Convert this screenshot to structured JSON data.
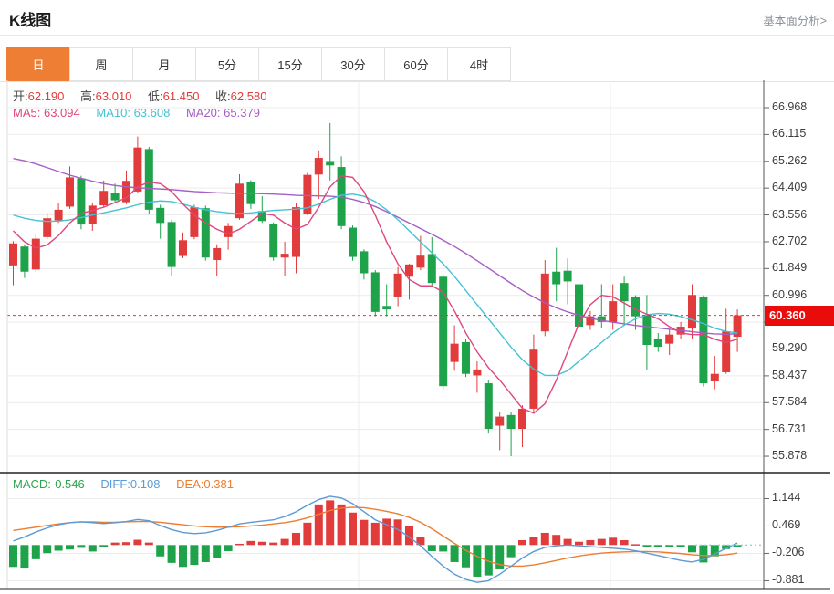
{
  "header": {
    "title": "K线图",
    "link": "基本面分析>"
  },
  "tabs": {
    "items": [
      "日",
      "周",
      "月",
      "5分",
      "15分",
      "30分",
      "60分",
      "4时"
    ],
    "active": 0
  },
  "ohlc": {
    "o_label": "开:",
    "o": "62.190",
    "h_label": "高:",
    "h": "63.010",
    "l_label": "低:",
    "l": "61.450",
    "c_label": "收:",
    "c": "62.580"
  },
  "ma_row": {
    "ma5_label": "MA5:",
    "ma5": "63.094",
    "ma10_label": "MA10:",
    "ma10": "63.608",
    "ma20_label": "MA20:",
    "ma20": "65.379"
  },
  "macd_row": {
    "macd_label": "MACD:",
    "macd": "-0.546",
    "diff_label": "DIFF:",
    "diff": "0.108",
    "dea_label": "DEA:",
    "dea": "0.381"
  },
  "price_axis": {
    "ticks": [
      "66.968",
      "66.115",
      "65.262",
      "64.409",
      "63.556",
      "62.702",
      "61.849",
      "60.996",
      "60.143",
      "59.290",
      "58.437",
      "57.584",
      "56.731",
      "55.878"
    ],
    "badge": "60.360"
  },
  "macd_axis": {
    "ticks": [
      "1.144",
      "0.469",
      "-0.206",
      "-0.881"
    ]
  },
  "colors": {
    "up": "#e23b3b",
    "down": "#1ea34b",
    "ma5": "#e0467e",
    "ma10": "#45c2d4",
    "ma20": "#a55ec3",
    "diff": "#5b9bd5",
    "dea": "#ed7d31",
    "macdtxt": "#2da44e",
    "badge": "#ea0b0b",
    "tabact": "#ee7e33",
    "grid": "#ececec",
    "axis_line": "#555555",
    "panel_border": "#222222",
    "dashed_line": "#f23030",
    "macd_dotted": "#8fd3dd"
  },
  "chart_data": {
    "type": "candlestick_with_macd",
    "panels": [
      {
        "name": "kline",
        "type": "candlestick",
        "price_ticks": [
          66.968,
          66.115,
          65.262,
          64.409,
          63.556,
          62.702,
          61.849,
          60.996,
          60.143,
          59.29,
          58.437,
          57.584,
          56.731,
          55.878
        ],
        "last_price": 60.36,
        "up_means": "close>=open (red)",
        "candles": [
          [
            61.95,
            62.72,
            61.32,
            62.65
          ],
          [
            62.55,
            62.62,
            61.55,
            61.75
          ],
          [
            61.82,
            62.95,
            61.75,
            62.8
          ],
          [
            62.85,
            63.62,
            62.78,
            63.45
          ],
          [
            63.38,
            63.92,
            63.3,
            63.72
          ],
          [
            63.82,
            65.1,
            63.75,
            64.75
          ],
          [
            64.72,
            64.8,
            63.1,
            63.25
          ],
          [
            63.28,
            63.95,
            63.05,
            63.85
          ],
          [
            63.86,
            64.65,
            63.8,
            64.32
          ],
          [
            64.25,
            64.55,
            63.92,
            64.02
          ],
          [
            63.96,
            64.97,
            63.9,
            64.64
          ],
          [
            64.3,
            66.05,
            64.25,
            65.7
          ],
          [
            65.65,
            65.72,
            63.6,
            63.72
          ],
          [
            63.78,
            63.88,
            62.8,
            63.3
          ],
          [
            63.33,
            63.4,
            61.6,
            61.9
          ],
          [
            62.25,
            63.0,
            62.18,
            62.75
          ],
          [
            62.85,
            63.88,
            62.78,
            63.8
          ],
          [
            63.77,
            63.85,
            62.1,
            62.2
          ],
          [
            62.12,
            62.62,
            61.6,
            62.5
          ],
          [
            62.85,
            63.3,
            62.45,
            63.2
          ],
          [
            63.45,
            64.85,
            63.4,
            64.55
          ],
          [
            64.6,
            64.66,
            63.75,
            63.9
          ],
          [
            63.68,
            64.15,
            63.3,
            63.36
          ],
          [
            63.28,
            63.32,
            62.1,
            62.2
          ],
          [
            62.2,
            62.7,
            61.6,
            62.32
          ],
          [
            62.22,
            63.95,
            61.7,
            63.8
          ],
          [
            63.6,
            64.9,
            63.55,
            64.83
          ],
          [
            64.84,
            65.61,
            64.06,
            65.37
          ],
          [
            65.27,
            66.48,
            64.65,
            65.13
          ],
          [
            65.08,
            65.42,
            63.1,
            63.2
          ],
          [
            63.15,
            63.22,
            62.1,
            62.22
          ],
          [
            62.4,
            62.46,
            61.5,
            61.7
          ],
          [
            61.73,
            61.8,
            60.33,
            60.47
          ],
          [
            60.66,
            61.35,
            60.33,
            60.55
          ],
          [
            60.96,
            61.9,
            60.65,
            61.69
          ],
          [
            61.59,
            62.0,
            60.86,
            61.98
          ],
          [
            61.88,
            62.89,
            61.8,
            62.26
          ],
          [
            62.31,
            62.85,
            61.3,
            61.39
          ],
          [
            61.59,
            61.65,
            58.0,
            58.11
          ],
          [
            58.88,
            60.04,
            58.6,
            59.46
          ],
          [
            59.51,
            59.6,
            58.4,
            58.5
          ],
          [
            58.45,
            58.9,
            57.9,
            58.64
          ],
          [
            58.2,
            58.3,
            56.6,
            56.75
          ],
          [
            56.85,
            57.3,
            56.07,
            57.14
          ],
          [
            57.19,
            57.3,
            55.88,
            56.75
          ],
          [
            56.75,
            57.5,
            56.17,
            57.39
          ],
          [
            57.39,
            59.75,
            57.3,
            59.27
          ],
          [
            59.85,
            62.12,
            59.7,
            61.69
          ],
          [
            61.75,
            62.51,
            60.81,
            61.35
          ],
          [
            61.78,
            62.17,
            60.71,
            61.44
          ],
          [
            61.35,
            61.4,
            59.75,
            60.0
          ],
          [
            60.05,
            60.5,
            59.9,
            60.33
          ],
          [
            60.33,
            61.35,
            59.95,
            60.15
          ],
          [
            60.14,
            61.35,
            59.9,
            60.81
          ],
          [
            61.39,
            61.59,
            60.04,
            60.81
          ],
          [
            60.96,
            61.0,
            59.9,
            60.33
          ],
          [
            60.38,
            61.01,
            58.64,
            59.42
          ],
          [
            59.61,
            59.8,
            59.2,
            59.36
          ],
          [
            59.46,
            59.9,
            59.1,
            59.75
          ],
          [
            59.75,
            60.15,
            59.6,
            60.0
          ],
          [
            59.94,
            61.35,
            59.61,
            61.01
          ],
          [
            60.96,
            61.0,
            58.1,
            58.2
          ],
          [
            58.26,
            59.07,
            58.01,
            58.5
          ],
          [
            58.55,
            60.57,
            58.5,
            59.85
          ],
          [
            59.68,
            60.55,
            59.2,
            60.36
          ]
        ],
        "ma": {
          "ma5": [
            63.05,
            62.7,
            62.5,
            62.6,
            62.9,
            63.3,
            63.6,
            63.7,
            63.8,
            63.95,
            64.1,
            64.45,
            64.6,
            64.55,
            64.3,
            63.9,
            63.55,
            63.3,
            63.1,
            62.95,
            63.1,
            63.35,
            63.6,
            63.55,
            63.3,
            63.1,
            63.25,
            63.8,
            64.45,
            64.8,
            64.75,
            64.3,
            63.55,
            62.7,
            62.0,
            61.5,
            61.3,
            61.3,
            61.1,
            60.5,
            59.8,
            59.2,
            58.7,
            58.3,
            57.85,
            57.4,
            57.25,
            57.55,
            58.3,
            59.2,
            60.1,
            60.7,
            61.0,
            60.95,
            60.75,
            60.55,
            60.4,
            60.25,
            60.0,
            59.8,
            59.75,
            59.75,
            59.6,
            59.5,
            59.6
          ],
          "ma10": [
            63.55,
            63.45,
            63.38,
            63.35,
            63.36,
            63.4,
            63.47,
            63.55,
            63.62,
            63.7,
            63.78,
            63.88,
            63.96,
            64.0,
            63.98,
            63.9,
            63.8,
            63.72,
            63.66,
            63.62,
            63.6,
            63.62,
            63.66,
            63.7,
            63.72,
            63.74,
            63.78,
            63.9,
            64.05,
            64.18,
            64.22,
            64.15,
            63.98,
            63.72,
            63.4,
            63.05,
            62.7,
            62.35,
            62.0,
            61.6,
            61.15,
            60.7,
            60.25,
            59.8,
            59.35,
            58.95,
            58.65,
            58.45,
            58.45,
            58.6,
            58.9,
            59.2,
            59.5,
            59.8,
            60.05,
            60.25,
            60.38,
            60.42,
            60.4,
            60.32,
            60.22,
            60.1,
            59.95,
            59.85,
            59.8
          ],
          "ma20": [
            65.35,
            65.28,
            65.18,
            65.06,
            64.94,
            64.82,
            64.72,
            64.63,
            64.55,
            64.49,
            64.45,
            64.42,
            64.4,
            64.38,
            64.36,
            64.33,
            64.3,
            64.28,
            64.26,
            64.25,
            64.24,
            64.24,
            64.23,
            64.22,
            64.2,
            64.18,
            64.17,
            64.16,
            64.15,
            64.12,
            64.05,
            63.95,
            63.82,
            63.66,
            63.48,
            63.3,
            63.12,
            62.94,
            62.75,
            62.55,
            62.33,
            62.1,
            61.86,
            61.62,
            61.38,
            61.15,
            60.94,
            60.76,
            60.6,
            60.47,
            60.36,
            60.27,
            60.2,
            60.14,
            60.09,
            60.04,
            60.0,
            59.96,
            59.92,
            59.88,
            59.84,
            59.8,
            59.77,
            59.76,
            59.78
          ]
        }
      },
      {
        "name": "macd",
        "type": "bar+line",
        "value_ticks": [
          1.144,
          0.469,
          -0.206,
          -0.881
        ],
        "histogram": [
          -0.54,
          -0.58,
          -0.35,
          -0.2,
          -0.14,
          -0.11,
          -0.07,
          -0.16,
          -0.04,
          0.06,
          0.07,
          0.13,
          0.06,
          -0.28,
          -0.44,
          -0.54,
          -0.49,
          -0.42,
          -0.33,
          -0.15,
          0.03,
          0.1,
          0.08,
          0.06,
          0.15,
          0.3,
          0.55,
          1.0,
          1.1,
          1.0,
          0.8,
          0.62,
          0.55,
          0.65,
          0.63,
          0.48,
          0.2,
          -0.15,
          -0.16,
          -0.42,
          -0.55,
          -0.78,
          -0.75,
          -0.6,
          -0.3,
          0.12,
          0.2,
          0.3,
          0.25,
          0.15,
          0.08,
          0.12,
          0.15,
          0.18,
          0.12,
          0.02,
          -0.05,
          -0.06,
          -0.05,
          -0.06,
          -0.18,
          -0.43,
          -0.28,
          -0.1,
          -0.05
        ],
        "diff_line": [
          0.1,
          0.2,
          0.32,
          0.42,
          0.5,
          0.55,
          0.57,
          0.55,
          0.53,
          0.55,
          0.58,
          0.63,
          0.6,
          0.48,
          0.38,
          0.31,
          0.28,
          0.3,
          0.36,
          0.44,
          0.52,
          0.56,
          0.59,
          0.62,
          0.7,
          0.82,
          0.98,
          1.12,
          1.2,
          1.16,
          1.02,
          0.82,
          0.62,
          0.5,
          0.38,
          0.2,
          -0.02,
          -0.28,
          -0.52,
          -0.72,
          -0.85,
          -0.92,
          -0.88,
          -0.72,
          -0.52,
          -0.32,
          -0.16,
          -0.06,
          -0.02,
          0.0,
          -0.02,
          -0.04,
          -0.06,
          -0.08,
          -0.1,
          -0.14,
          -0.2,
          -0.26,
          -0.32,
          -0.38,
          -0.42,
          -0.35,
          -0.22,
          -0.08,
          0.05
        ],
        "dea_line": [
          0.36,
          0.4,
          0.44,
          0.48,
          0.52,
          0.55,
          0.57,
          0.57,
          0.56,
          0.56,
          0.57,
          0.58,
          0.58,
          0.56,
          0.53,
          0.5,
          0.47,
          0.45,
          0.44,
          0.44,
          0.45,
          0.47,
          0.49,
          0.52,
          0.55,
          0.6,
          0.67,
          0.76,
          0.85,
          0.91,
          0.93,
          0.92,
          0.88,
          0.83,
          0.77,
          0.68,
          0.56,
          0.4,
          0.22,
          0.04,
          -0.13,
          -0.28,
          -0.4,
          -0.48,
          -0.52,
          -0.52,
          -0.49,
          -0.44,
          -0.38,
          -0.32,
          -0.27,
          -0.23,
          -0.2,
          -0.18,
          -0.17,
          -0.16,
          -0.16,
          -0.17,
          -0.19,
          -0.21,
          -0.24,
          -0.26,
          -0.26,
          -0.24,
          -0.2
        ]
      }
    ]
  }
}
